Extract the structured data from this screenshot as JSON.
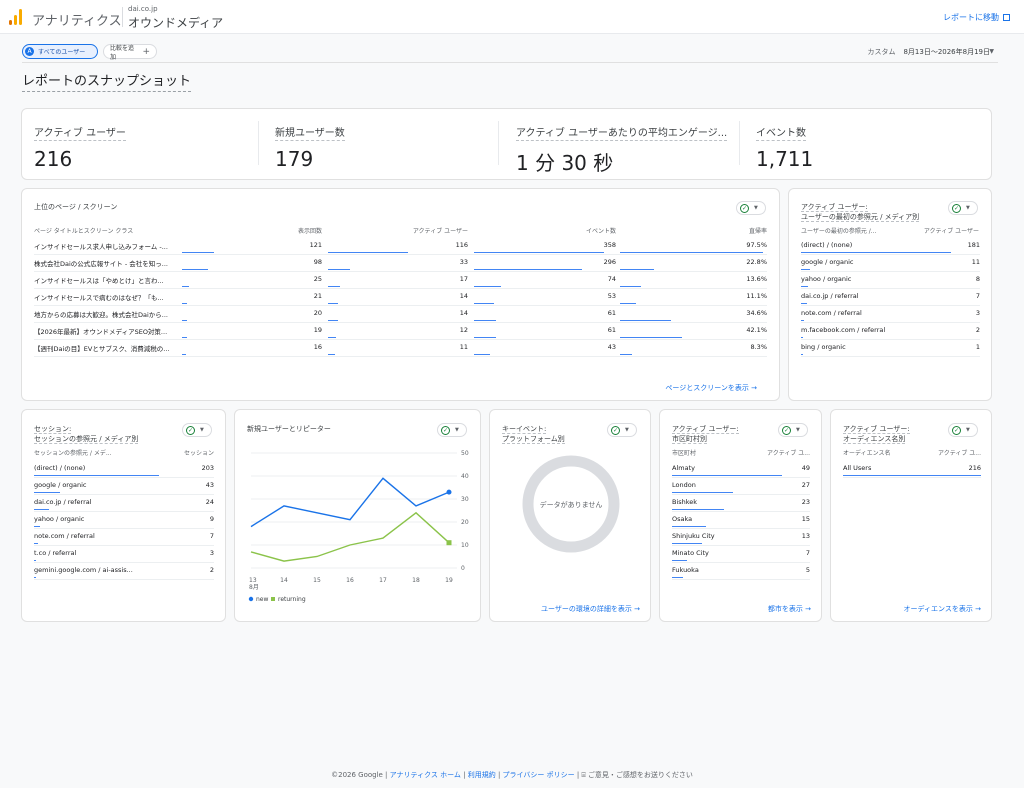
{
  "header": {
    "app_name": "アナリティクス",
    "property_small": "dai.co.jp",
    "property_name": "オウンドメディア",
    "report_link": "レポートに移動"
  },
  "filters": {
    "users_chip": "すべてのユーザー",
    "users_chip_letter": "A",
    "compare_chip": "比較を追加",
    "date_prefix": "カスタム",
    "date_range": "8月13日～2026年8月19日"
  },
  "page_title": "レポートのスナップショット",
  "kpis": [
    {
      "label": "アクティブ ユーザー",
      "value": "216"
    },
    {
      "label": "新規ユーザー数",
      "value": "179"
    },
    {
      "label": "アクティブ ユーザーあたりの平均エンゲージ...",
      "value": "1 分 30 秒"
    },
    {
      "label": "イベント数",
      "value": "1,711"
    }
  ],
  "pages_card": {
    "title": "上位のページ / スクリーン",
    "headers": [
      "ページ タイトルとスクリーン クラス",
      "表示回数",
      "アクティブ ユーザー",
      "イベント数",
      "直帰率"
    ],
    "rows": [
      {
        "title": "インサイドセールス求人申し込みフォーム -...",
        "views": "121",
        "users": "116",
        "events": "358",
        "bounce": "97.5%",
        "views_frac": 1.0,
        "users_frac": 1.0,
        "events_frac": 1.0,
        "bounce_frac": 0.975
      },
      {
        "title": "株式会社Daiの公式広報サイト - 会社を知っ...",
        "views": "98",
        "users": "33",
        "events": "296",
        "bounce": "22.8%",
        "views_frac": 0.81,
        "users_frac": 0.28,
        "events_frac": 0.83,
        "bounce_frac": 0.23
      },
      {
        "title": "インサイドセールスは「やめとけ」と言わ...",
        "views": "25",
        "users": "17",
        "events": "74",
        "bounce": "13.6%",
        "views_frac": 0.21,
        "users_frac": 0.15,
        "events_frac": 0.21,
        "bounce_frac": 0.14
      },
      {
        "title": "インサイドセールスで病むのはなぜ？「も...",
        "views": "21",
        "users": "14",
        "events": "53",
        "bounce": "11.1%",
        "views_frac": 0.17,
        "users_frac": 0.12,
        "events_frac": 0.15,
        "bounce_frac": 0.11
      },
      {
        "title": "地方からの応募は大歓迎。株式会社Daiから...",
        "views": "20",
        "users": "14",
        "events": "61",
        "bounce": "34.6%",
        "views_frac": 0.17,
        "users_frac": 0.12,
        "events_frac": 0.17,
        "bounce_frac": 0.35
      },
      {
        "title": "【2026年最新】オウンドメディアSEO対策...",
        "views": "19",
        "users": "12",
        "events": "61",
        "bounce": "42.1%",
        "views_frac": 0.16,
        "users_frac": 0.1,
        "events_frac": 0.17,
        "bounce_frac": 0.42
      },
      {
        "title": "【週刊Daiの目】EVとサブスク、消費減税の...",
        "views": "16",
        "users": "11",
        "events": "43",
        "bounce": "8.3%",
        "views_frac": 0.13,
        "users_frac": 0.09,
        "events_frac": 0.12,
        "bounce_frac": 0.08
      }
    ],
    "footer_link": "ページとスクリーンを表示"
  },
  "first_source_card": {
    "title_line1": "アクティブ ユーザー:",
    "title_line2": "ユーザーの最初の参照元 / メディア別",
    "headers": [
      "ユーザーの最初の参照元 /...",
      "アクティブ ユーザー"
    ],
    "rows": [
      {
        "label": "(direct) / (none)",
        "value": "181",
        "frac": 1.0
      },
      {
        "label": "google / organic",
        "value": "11",
        "frac": 0.06
      },
      {
        "label": "yahoo / organic",
        "value": "8",
        "frac": 0.045
      },
      {
        "label": "dai.co.jp / referral",
        "value": "7",
        "frac": 0.04
      },
      {
        "label": "note.com / referral",
        "value": "3",
        "frac": 0.02
      },
      {
        "label": "m.facebook.com / referral",
        "value": "2",
        "frac": 0.012
      },
      {
        "label": "bing / organic",
        "value": "1",
        "frac": 0.006
      }
    ]
  },
  "session_card": {
    "title_line1": "セッション:",
    "title_line2": "セッションの参照元 / メディア別",
    "headers": [
      "セッションの参照元 / メデ...",
      "セッション"
    ],
    "rows": [
      {
        "label": "(direct) / (none)",
        "value": "203",
        "frac": 1.0
      },
      {
        "label": "google / organic",
        "value": "43",
        "frac": 0.21
      },
      {
        "label": "dai.co.jp / referral",
        "value": "24",
        "frac": 0.12
      },
      {
        "label": "yahoo / organic",
        "value": "9",
        "frac": 0.045
      },
      {
        "label": "note.com / referral",
        "value": "7",
        "frac": 0.035
      },
      {
        "label": "t.co / referral",
        "value": "3",
        "frac": 0.015
      },
      {
        "label": "gemini.google.com / ai-assis...",
        "value": "2",
        "frac": 0.01
      }
    ]
  },
  "chart_card": {
    "title": "新規ユーザーとリピーター"
  },
  "chart_data": {
    "type": "line",
    "x": [
      "13",
      "14",
      "15",
      "16",
      "17",
      "18",
      "19"
    ],
    "x_sublabel": "8月",
    "series": [
      {
        "name": "new",
        "color": "#1a73e8",
        "values": [
          18,
          27,
          24,
          21,
          39,
          27,
          33
        ]
      },
      {
        "name": "returning",
        "color": "#8bc34a",
        "values": [
          7,
          3,
          5,
          10,
          13,
          24,
          11
        ]
      }
    ],
    "ylim": [
      0,
      50
    ],
    "yticks": [
      "50",
      "40",
      "30",
      "20",
      "10",
      "0"
    ],
    "grid": true,
    "legend": "bottom-left"
  },
  "platform_card": {
    "title_line1": "キーイベント:",
    "title_line2": "プラットフォーム別",
    "no_data": "データがありません",
    "footer_link": "ユーザーの環境の詳細を表示"
  },
  "city_card": {
    "title_line1": "アクティブ ユーザー:",
    "title_line2": "市区町村別",
    "headers": [
      "市区町村",
      "アクティブ ユ..."
    ],
    "rows": [
      {
        "label": "Almaty",
        "value": "49",
        "frac": 1.0
      },
      {
        "label": "London",
        "value": "27",
        "frac": 0.55
      },
      {
        "label": "Bishkek",
        "value": "23",
        "frac": 0.47
      },
      {
        "label": "Osaka",
        "value": "15",
        "frac": 0.31
      },
      {
        "label": "Shinjuku City",
        "value": "13",
        "frac": 0.27
      },
      {
        "label": "Minato City",
        "value": "7",
        "frac": 0.14
      },
      {
        "label": "Fukuoka",
        "value": "5",
        "frac": 0.1
      }
    ],
    "footer_link": "都市を表示"
  },
  "audience_card": {
    "title_line1": "アクティブ ユーザー:",
    "title_line2": "オーディエンス名別",
    "headers": [
      "オーディエンス名",
      "アクティブ ユ..."
    ],
    "rows": [
      {
        "label": "All Users",
        "value": "216",
        "frac": 1.0
      }
    ],
    "footer_link": "オーディエンスを表示"
  },
  "footer": {
    "copyright": "©2026 Google |",
    "link_home": "アナリティクス ホーム",
    "link_terms": "利用規約",
    "link_privacy": "プライバシー ポリシー",
    "feedback": "ご意見・ご感想をお送りください"
  },
  "colors": {
    "accent": "#1a73e8",
    "bar": "#4285f4",
    "logo_orange": "#f9ab00",
    "logo_dark": "#e37400"
  },
  "icons": {
    "ok": "check-circle-icon",
    "arrow": "arrow-right-icon",
    "feedback": "feedback-icon"
  }
}
